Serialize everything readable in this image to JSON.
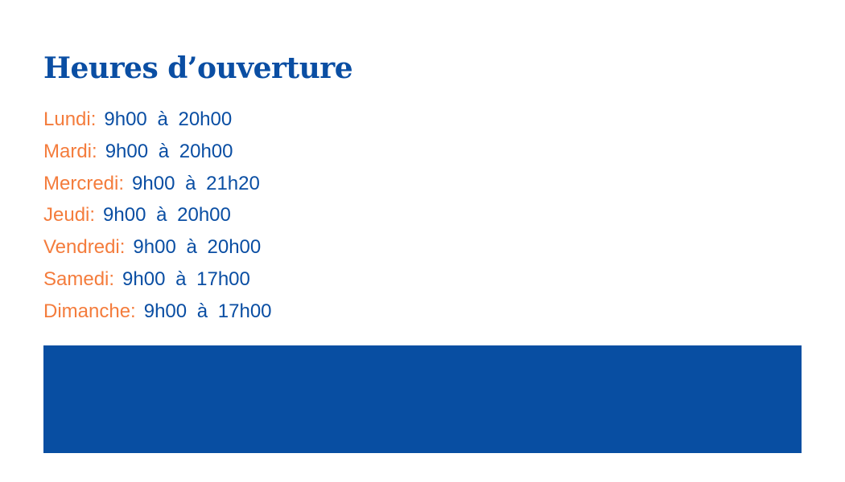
{
  "title": "Heures d’ouverture",
  "hours": [
    {
      "day": "Lundi:",
      "time": "9h00 à 20h00"
    },
    {
      "day": "Mardi:",
      "time": "9h00 à 20h00"
    },
    {
      "day": "Mercredi:",
      "time": "9h00 à 21h20"
    },
    {
      "day": "Jeudi:",
      "time": "9h00 à 20h00"
    },
    {
      "day": "Vendredi:",
      "time": "9h00 à 20h00"
    },
    {
      "day": "Samedi:",
      "time": "9h00 à 17h00"
    },
    {
      "day": "Dimanche:",
      "time": "9h00 à 17h00"
    }
  ],
  "colors": {
    "primary": "#0a4ea3",
    "accent": "#f47c3c",
    "band": "#084ea2"
  }
}
